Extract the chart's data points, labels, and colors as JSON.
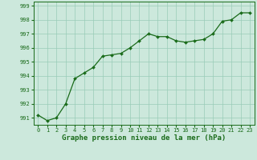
{
  "x": [
    0,
    1,
    2,
    3,
    4,
    5,
    6,
    7,
    8,
    9,
    10,
    11,
    12,
    13,
    14,
    15,
    16,
    17,
    18,
    19,
    20,
    21,
    22,
    23
  ],
  "y": [
    991.2,
    990.8,
    991.0,
    992.0,
    993.8,
    994.2,
    994.6,
    995.4,
    995.5,
    995.6,
    996.0,
    996.5,
    997.0,
    996.8,
    996.8,
    996.5,
    996.4,
    996.5,
    996.6,
    997.0,
    997.9,
    998.0,
    998.5,
    998.5
  ],
  "line_color": "#1a6b1a",
  "marker_color": "#1a6b1a",
  "bg_color": "#cce8dc",
  "grid_color": "#99ccb8",
  "xlabel": "Graphe pression niveau de la mer (hPa)",
  "xlabel_fontsize": 6.5,
  "ylim": [
    990.5,
    999.3
  ],
  "xlim": [
    -0.5,
    23.5
  ],
  "yticks": [
    991,
    992,
    993,
    994,
    995,
    996,
    997,
    998,
    999
  ],
  "xticks": [
    0,
    1,
    2,
    3,
    4,
    5,
    6,
    7,
    8,
    9,
    10,
    11,
    12,
    13,
    14,
    15,
    16,
    17,
    18,
    19,
    20,
    21,
    22,
    23
  ],
  "tick_fontsize": 5.0,
  "line_width": 0.9,
  "marker_size": 2.0
}
